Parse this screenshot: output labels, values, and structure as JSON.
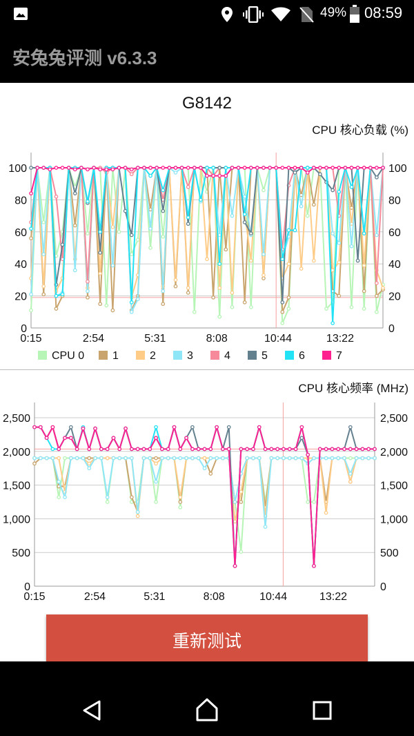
{
  "status_bar": {
    "battery": "49%",
    "time": "08:59",
    "icons": [
      "image-icon",
      "location-icon",
      "vibrate-icon",
      "wifi-icon",
      "no-sim-icon",
      "battery-icon"
    ]
  },
  "app": {
    "title": "安兔兔评测 v6.3.3"
  },
  "device": "G8142",
  "retest_button": "重新测试",
  "nav": {
    "icons": [
      "back-icon",
      "home-icon",
      "recents-icon"
    ]
  },
  "colors": {
    "cpu0": "#b6f5b6",
    "cpu1": "#c9a46c",
    "cpu2": "#ffcc88",
    "cpu3": "#8ee6f6",
    "cpu4": "#f78a9a",
    "cpu5": "#63808f",
    "cpu6": "#22e2f5",
    "cpu7": "#ff2090",
    "highlight": "#f4a0a0",
    "button": "#d34f3f"
  },
  "chart_data": [
    {
      "type": "line",
      "title": "CPU 核心负载 (%)",
      "ylim": [
        0,
        100
      ],
      "yticks": [
        "0",
        "20",
        "40",
        "60",
        "80",
        "100"
      ],
      "xticks": [
        "0:15",
        "2:54",
        "5:31",
        "8:08",
        "10:44",
        "13:22"
      ],
      "x_range": [
        "0:15",
        "15:11"
      ],
      "grid": true,
      "legend": "bottom",
      "highlight": {
        "y": 19,
        "x": "10:39"
      },
      "series": [
        {
          "name": "CPU 0",
          "values": [
            11,
            100,
            66,
            100,
            45,
            60,
            100,
            88,
            100,
            59,
            100,
            100,
            14,
            100,
            60,
            100,
            46,
            55,
            100,
            50,
            100,
            57,
            100,
            100,
            100,
            100,
            10,
            100,
            85,
            100,
            7,
            100,
            13,
            100,
            100,
            13,
            100,
            86,
            100,
            100,
            3,
            12,
            100,
            100,
            70,
            100,
            100,
            12,
            16,
            100,
            100,
            13,
            100,
            12,
            100,
            10,
            27
          ]
        },
        {
          "name": "1",
          "values": [
            56,
            100,
            21,
            100,
            12,
            20,
            100,
            64,
            100,
            19,
            100,
            15,
            100,
            11,
            100,
            100,
            11,
            20,
            100,
            74,
            100,
            15,
            100,
            26,
            100,
            22,
            100,
            100,
            100,
            19,
            100,
            49,
            100,
            100,
            16,
            100,
            100,
            31,
            100,
            100,
            10,
            19,
            100,
            83,
            100,
            77,
            100,
            100,
            23,
            20,
            100,
            75,
            100,
            23,
            100,
            20,
            24
          ]
        },
        {
          "name": "2",
          "values": [
            31,
            100,
            26,
            100,
            23,
            31,
            100,
            43,
            100,
            25,
            100,
            34,
            100,
            63,
            100,
            100,
            19,
            33,
            100,
            100,
            100,
            26,
            100,
            30,
            100,
            25,
            100,
            100,
            43,
            100,
            25,
            100,
            22,
            100,
            72,
            42,
            100,
            33,
            100,
            100,
            31,
            40,
            100,
            37,
            100,
            42,
            100,
            100,
            36,
            41,
            100,
            65,
            100,
            39,
            100,
            36,
            25
          ]
        },
        {
          "name": "3",
          "values": [
            21,
            100,
            46,
            100,
            20,
            22,
            100,
            36,
            100,
            23,
            100,
            60,
            100,
            39,
            100,
            100,
            10,
            18,
            100,
            62,
            100,
            23,
            100,
            97,
            100,
            69,
            100,
            79,
            100,
            100,
            58,
            100,
            70,
            100,
            82,
            58,
            100,
            46,
            100,
            100,
            43,
            57,
            100,
            76,
            100,
            100,
            100,
            100,
            59,
            53,
            100,
            51,
            100,
            59,
            100,
            58,
            100
          ]
        },
        {
          "name": "4",
          "values": [
            66,
            100,
            100,
            100,
            82,
            43,
            100,
            100,
            100,
            29,
            100,
            100,
            97,
            100,
            100,
            100,
            96,
            100,
            100,
            100,
            100,
            80,
            100,
            100,
            100,
            88,
            100,
            100,
            100,
            95,
            100,
            100,
            100,
            100,
            100,
            100,
            100,
            100,
            100,
            100,
            49,
            89,
            100,
            100,
            100,
            100,
            100,
            100,
            100,
            70,
            100,
            100,
            100,
            100,
            100,
            28,
            100
          ]
        },
        {
          "name": "5",
          "values": [
            100,
            100,
            100,
            100,
            27,
            52,
            100,
            84,
            100,
            78,
            100,
            47,
            100,
            100,
            100,
            73,
            58,
            100,
            100,
            100,
            100,
            73,
            100,
            100,
            100,
            65,
            100,
            100,
            100,
            100,
            100,
            100,
            100,
            100,
            66,
            59,
            100,
            100,
            100,
            100,
            16,
            100,
            97,
            100,
            100,
            100,
            96,
            91,
            86,
            100,
            100,
            100,
            42,
            100,
            100,
            94,
            100
          ]
        },
        {
          "name": "6",
          "values": [
            62,
            100,
            100,
            100,
            20,
            21,
            100,
            100,
            100,
            79,
            100,
            60,
            100,
            100,
            100,
            100,
            16,
            100,
            100,
            95,
            100,
            86,
            100,
            100,
            100,
            69,
            100,
            80,
            100,
            100,
            40,
            100,
            100,
            100,
            71,
            100,
            100,
            100,
            100,
            100,
            43,
            61,
            61,
            100,
            100,
            100,
            100,
            100,
            3,
            85,
            100,
            88,
            100,
            59,
            100,
            100,
            100
          ]
        },
        {
          "name": "7",
          "values": [
            84,
            100,
            100,
            99,
            100,
            100,
            100,
            99,
            100,
            99,
            100,
            99,
            99,
            99,
            100,
            100,
            99,
            100,
            100,
            100,
            100,
            100,
            100,
            100,
            100,
            100,
            100,
            100,
            95,
            95,
            95,
            95,
            100,
            100,
            100,
            100,
            100,
            100,
            100,
            100,
            100,
            100,
            100,
            100,
            97,
            100,
            100,
            100,
            100,
            100,
            100,
            100,
            100,
            100,
            100,
            100,
            100
          ]
        }
      ]
    },
    {
      "type": "line",
      "title": "CPU 核心频率 (MHz)",
      "ylim": [
        0,
        2500
      ],
      "yticks": [
        "0",
        "500",
        "1,000",
        "1,500",
        "2,000",
        "2,500"
      ],
      "xticks": [
        "0:15",
        "2:54",
        "5:31",
        "8:08",
        "10:44",
        "13:22"
      ],
      "x_range": [
        "0:15",
        "15:11"
      ],
      "grid": true,
      "legend": "none",
      "highlight": {
        "y": 2035,
        "x": "11:10"
      },
      "series": [
        {
          "name": "CPU 0",
          "values": [
            1900,
            1900,
            1900,
            1900,
            1320,
            1900,
            1900,
            1900,
            1900,
            1900,
            1900,
            1900,
            1250,
            1900,
            1900,
            1900,
            1250,
            1250,
            1900,
            1900,
            1250,
            1900,
            1900,
            1900,
            1170,
            1900,
            1900,
            1900,
            1900,
            1900,
            1900,
            1900,
            1900,
            1250,
            510,
            1900,
            1900,
            1900,
            1250,
            1900,
            1900,
            1900,
            1900,
            1900,
            1900,
            1250,
            1250,
            1900,
            1900,
            1900,
            1900,
            1900,
            1900,
            1900,
            1900,
            1900,
            1900
          ]
        },
        {
          "name": "1",
          "values": [
            1820,
            1900,
            1900,
            1900,
            1480,
            1480,
            1900,
            1900,
            1900,
            1900,
            1900,
            1900,
            1900,
            1900,
            1900,
            1900,
            1320,
            1100,
            1900,
            1900,
            1900,
            1900,
            1900,
            1900,
            1250,
            1900,
            1900,
            1900,
            1900,
            1670,
            1900,
            1900,
            1900,
            1250,
            1250,
            1900,
            1900,
            1900,
            1170,
            1900,
            1900,
            1900,
            1900,
            1900,
            1900,
            1900,
            1900,
            1900,
            1250,
            1900,
            1900,
            1900,
            1550,
            1900,
            1900,
            1900,
            1900
          ]
        },
        {
          "name": "2",
          "values": [
            1900,
            1900,
            1900,
            1900,
            1900,
            1400,
            1900,
            1900,
            1900,
            1820,
            1900,
            1900,
            1900,
            1900,
            1900,
            1900,
            1900,
            1040,
            1900,
            1900,
            1820,
            1900,
            1900,
            1900,
            1320,
            1900,
            1900,
            1900,
            1900,
            1900,
            1900,
            1900,
            1900,
            960,
            1400,
            1900,
            1900,
            1900,
            1040,
            1900,
            1900,
            1900,
            1900,
            1900,
            1900,
            1900,
            1900,
            1900,
            1090,
            1900,
            1900,
            1900,
            1550,
            1900,
            1900,
            1900,
            1900
          ]
        },
        {
          "name": "3",
          "values": [
            1900,
            1900,
            1900,
            1900,
            1550,
            1320,
            1900,
            1900,
            1900,
            1750,
            1900,
            1900,
            1320,
            1900,
            1900,
            1900,
            1900,
            1100,
            1900,
            1900,
            1550,
            1900,
            1900,
            1900,
            1900,
            1900,
            1900,
            1900,
            1750,
            1900,
            1900,
            1900,
            1900,
            1250,
            1670,
            1900,
            1900,
            1900,
            880,
            1900,
            1900,
            1900,
            1900,
            1900,
            1900,
            1820,
            1900,
            1900,
            1900,
            1900,
            1900,
            1900,
            1670,
            1900,
            1900,
            1900,
            1900
          ]
        },
        {
          "name": "4",
          "values": [
            2360,
            2360,
            2200,
            2360,
            2035,
            2200,
            2200,
            2035,
            2340,
            2035,
            2340,
            2035,
            2035,
            2200,
            2035,
            2340,
            2035,
            2035,
            2035,
            2035,
            2200,
            2035,
            2035,
            2360,
            2035,
            2200,
            2035,
            2035,
            2035,
            2035,
            2360,
            2035,
            2035,
            300,
            2035,
            2035,
            2035,
            2360,
            2035,
            2035,
            2035,
            2035,
            2035,
            2035,
            2360,
            1950,
            300,
            2035,
            2035,
            2035,
            2035,
            2035,
            2035,
            2035,
            2035,
            2035,
            2035
          ]
        },
        {
          "name": "5",
          "values": [
            2360,
            2360,
            2200,
            2360,
            2035,
            2200,
            2360,
            2035,
            2340,
            2035,
            2340,
            2035,
            2035,
            2200,
            2035,
            2340,
            2035,
            2035,
            2035,
            2035,
            2200,
            2035,
            2035,
            2360,
            2035,
            2200,
            2360,
            2035,
            2035,
            2035,
            2360,
            2035,
            2360,
            300,
            2035,
            2035,
            2035,
            2360,
            2035,
            2035,
            2035,
            2035,
            2035,
            2035,
            2200,
            1950,
            300,
            2035,
            2035,
            2035,
            2035,
            2035,
            2360,
            2035,
            2035,
            2035,
            2035
          ]
        },
        {
          "name": "6",
          "values": [
            2360,
            2360,
            2200,
            2035,
            2035,
            2200,
            2200,
            2035,
            2360,
            2035,
            2340,
            2035,
            2035,
            2200,
            2035,
            2340,
            2035,
            2035,
            2035,
            2035,
            2360,
            2035,
            2035,
            2360,
            2035,
            2200,
            2035,
            2035,
            2035,
            2035,
            2360,
            2035,
            2035,
            300,
            2035,
            2035,
            2035,
            2360,
            2035,
            2035,
            2035,
            2035,
            2035,
            2035,
            2360,
            1950,
            300,
            2035,
            2035,
            2035,
            2035,
            2035,
            2035,
            2035,
            2035,
            2035,
            2035
          ]
        },
        {
          "name": "7",
          "values": [
            2360,
            2360,
            2200,
            2360,
            2035,
            2200,
            2200,
            2035,
            2340,
            2035,
            2340,
            2035,
            2035,
            2200,
            2035,
            2340,
            2035,
            2035,
            2035,
            2035,
            2200,
            2035,
            2035,
            2360,
            2035,
            2200,
            2035,
            2035,
            2035,
            2035,
            2360,
            2035,
            2035,
            300,
            2035,
            2035,
            2035,
            2360,
            2035,
            2035,
            2035,
            2035,
            2035,
            2035,
            2360,
            1950,
            300,
            2035,
            2035,
            2035,
            2035,
            2035,
            2035,
            2035,
            2035,
            2035,
            2035
          ]
        }
      ]
    }
  ]
}
